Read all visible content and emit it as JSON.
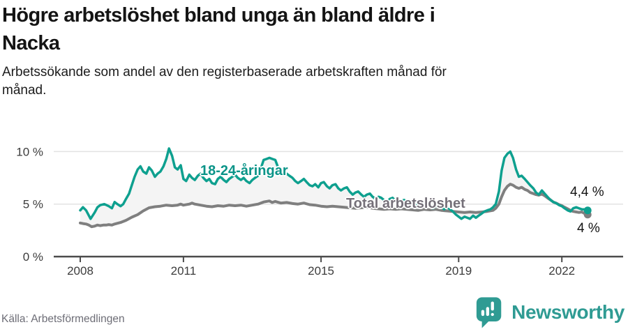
{
  "header": {
    "title_line1": "Högre arbetslöshet bland unga än bland äldre i",
    "title_line2": "Nacka",
    "subtitle_line1": "Arbetssökande som andel av den registerbaserade arbetskraften månad för",
    "subtitle_line2": "månad."
  },
  "footer": {
    "source": "Källa: Arbetsförmedlingen",
    "logo_icon": "newsworthy-speech-bubble-barchart-icon",
    "logo_text": "Newsworthy"
  },
  "colors": {
    "young_line": "#0ea08f",
    "young_label": "#0a9488",
    "total_line": "#7f7f7f",
    "total_label": "#757079",
    "band_fill": "#f4f4f4",
    "gridline": "#e3e3e3",
    "axis_line": "#4b4b4b",
    "tick_label": "#3c3c3c",
    "logo_teal": "#2f9b93"
  },
  "chart_data": {
    "type": "line",
    "title": "Högre arbetslöshet bland unga än bland äldre i Nacka",
    "subtitle": "Arbetssökande som andel av den registerbaserade arbetskraften månad för månad.",
    "unit": "%",
    "grid": "horizontal",
    "legend_position": "inline-labels-on-lines",
    "x_axis": {
      "ticks": [
        2008,
        2011,
        2015,
        2019,
        2022
      ],
      "tick_labels": [
        "2008",
        "2011",
        "2015",
        "2019",
        "2022"
      ],
      "range_years": [
        2008,
        2022.83
      ]
    },
    "y_axis": {
      "ticks": [
        0,
        5,
        10
      ],
      "tick_labels": [
        "0 %",
        "5 %",
        "10 %"
      ],
      "range": [
        0,
        11.8
      ]
    },
    "series": [
      {
        "name": "18-24-åringar",
        "color": "#0ea08f",
        "end_label": "4,4 %",
        "last_value": 4.4,
        "points": [
          [
            2008.0,
            4.4
          ],
          [
            2008.08,
            4.7
          ],
          [
            2008.17,
            4.4
          ],
          [
            2008.3,
            3.6
          ],
          [
            2008.42,
            4.2
          ],
          [
            2008.5,
            4.7
          ],
          [
            2008.58,
            4.9
          ],
          [
            2008.7,
            5.0
          ],
          [
            2008.83,
            4.8
          ],
          [
            2008.92,
            4.6
          ],
          [
            2009.0,
            5.2
          ],
          [
            2009.08,
            5.0
          ],
          [
            2009.17,
            4.8
          ],
          [
            2009.25,
            5.0
          ],
          [
            2009.33,
            5.5
          ],
          [
            2009.42,
            6.0
          ],
          [
            2009.5,
            6.8
          ],
          [
            2009.58,
            7.6
          ],
          [
            2009.67,
            8.3
          ],
          [
            2009.75,
            8.6
          ],
          [
            2009.83,
            8.1
          ],
          [
            2009.92,
            7.9
          ],
          [
            2010.0,
            8.5
          ],
          [
            2010.08,
            8.2
          ],
          [
            2010.17,
            7.6
          ],
          [
            2010.25,
            7.9
          ],
          [
            2010.33,
            8.1
          ],
          [
            2010.42,
            8.6
          ],
          [
            2010.5,
            9.3
          ],
          [
            2010.58,
            10.3
          ],
          [
            2010.67,
            9.6
          ],
          [
            2010.75,
            8.5
          ],
          [
            2010.83,
            8.3
          ],
          [
            2010.92,
            8.7
          ],
          [
            2011.0,
            7.4
          ],
          [
            2011.08,
            7.2
          ],
          [
            2011.17,
            7.8
          ],
          [
            2011.25,
            7.5
          ],
          [
            2011.33,
            7.3
          ],
          [
            2011.42,
            7.7
          ],
          [
            2011.5,
            7.9
          ],
          [
            2011.58,
            7.5
          ],
          [
            2011.67,
            7.2
          ],
          [
            2011.75,
            7.4
          ],
          [
            2011.83,
            7.0
          ],
          [
            2011.92,
            6.9
          ],
          [
            2012.0,
            7.4
          ],
          [
            2012.08,
            7.6
          ],
          [
            2012.17,
            7.3
          ],
          [
            2012.25,
            7.1
          ],
          [
            2012.33,
            7.4
          ],
          [
            2012.42,
            7.6
          ],
          [
            2012.5,
            7.8
          ],
          [
            2012.58,
            7.5
          ],
          [
            2012.67,
            7.3
          ],
          [
            2012.75,
            7.5
          ],
          [
            2012.83,
            7.2
          ],
          [
            2012.92,
            7.0
          ],
          [
            2013.0,
            7.3
          ],
          [
            2013.08,
            7.5
          ],
          [
            2013.17,
            7.7
          ],
          [
            2013.25,
            8.4
          ],
          [
            2013.33,
            9.2
          ],
          [
            2013.42,
            9.3
          ],
          [
            2013.5,
            9.4
          ],
          [
            2013.58,
            9.3
          ],
          [
            2013.67,
            9.2
          ],
          [
            2013.75,
            8.5
          ],
          [
            2013.83,
            8.0
          ],
          [
            2013.92,
            7.8
          ],
          [
            2014.0,
            7.9
          ],
          [
            2014.08,
            7.7
          ],
          [
            2014.17,
            7.5
          ],
          [
            2014.25,
            7.2
          ],
          [
            2014.33,
            7.0
          ],
          [
            2014.42,
            7.2
          ],
          [
            2014.5,
            7.4
          ],
          [
            2014.58,
            7.1
          ],
          [
            2014.67,
            6.8
          ],
          [
            2014.75,
            6.7
          ],
          [
            2014.83,
            6.9
          ],
          [
            2014.92,
            6.6
          ],
          [
            2015.0,
            7.0
          ],
          [
            2015.08,
            7.1
          ],
          [
            2015.17,
            6.7
          ],
          [
            2015.25,
            6.5
          ],
          [
            2015.33,
            6.8
          ],
          [
            2015.42,
            6.9
          ],
          [
            2015.5,
            6.5
          ],
          [
            2015.58,
            6.3
          ],
          [
            2015.67,
            6.5
          ],
          [
            2015.75,
            6.6
          ],
          [
            2015.83,
            6.2
          ],
          [
            2015.92,
            5.9
          ],
          [
            2016.0,
            6.1
          ],
          [
            2016.08,
            6.2
          ],
          [
            2016.17,
            5.9
          ],
          [
            2016.25,
            5.7
          ],
          [
            2016.33,
            5.9
          ],
          [
            2016.42,
            6.0
          ],
          [
            2016.5,
            5.7
          ],
          [
            2016.58,
            5.5
          ],
          [
            2016.67,
            5.7
          ],
          [
            2016.75,
            5.6
          ],
          [
            2016.83,
            5.4
          ],
          [
            2016.92,
            5.2
          ],
          [
            2017.0,
            5.5
          ],
          [
            2017.08,
            5.6
          ],
          [
            2017.17,
            5.3
          ],
          [
            2017.25,
            5.1
          ],
          [
            2017.33,
            5.3
          ],
          [
            2017.42,
            5.4
          ],
          [
            2017.5,
            5.2
          ],
          [
            2017.58,
            5.0
          ],
          [
            2017.67,
            5.2
          ],
          [
            2017.75,
            5.1
          ],
          [
            2017.83,
            4.9
          ],
          [
            2017.92,
            4.7
          ],
          [
            2018.0,
            5.0
          ],
          [
            2018.08,
            5.1
          ],
          [
            2018.17,
            4.8
          ],
          [
            2018.25,
            4.6
          ],
          [
            2018.33,
            4.8
          ],
          [
            2018.42,
            4.9
          ],
          [
            2018.5,
            4.7
          ],
          [
            2018.58,
            4.5
          ],
          [
            2018.67,
            4.7
          ],
          [
            2018.75,
            4.5
          ],
          [
            2018.83,
            4.3
          ],
          [
            2018.92,
            4.0
          ],
          [
            2019.0,
            3.8
          ],
          [
            2019.08,
            3.6
          ],
          [
            2019.17,
            3.8
          ],
          [
            2019.25,
            3.7
          ],
          [
            2019.33,
            3.6
          ],
          [
            2019.42,
            3.9
          ],
          [
            2019.5,
            3.7
          ],
          [
            2019.58,
            3.9
          ],
          [
            2019.67,
            4.1
          ],
          [
            2019.75,
            4.3
          ],
          [
            2019.83,
            4.4
          ],
          [
            2019.92,
            4.5
          ],
          [
            2020.0,
            4.7
          ],
          [
            2020.08,
            5.0
          ],
          [
            2020.17,
            6.2
          ],
          [
            2020.25,
            8.2
          ],
          [
            2020.33,
            9.4
          ],
          [
            2020.42,
            9.8
          ],
          [
            2020.5,
            10.0
          ],
          [
            2020.58,
            9.4
          ],
          [
            2020.67,
            8.3
          ],
          [
            2020.75,
            7.6
          ],
          [
            2020.83,
            7.7
          ],
          [
            2020.92,
            7.4
          ],
          [
            2021.0,
            7.1
          ],
          [
            2021.08,
            6.8
          ],
          [
            2021.17,
            6.5
          ],
          [
            2021.25,
            6.1
          ],
          [
            2021.33,
            5.9
          ],
          [
            2021.42,
            6.3
          ],
          [
            2021.5,
            6.0
          ],
          [
            2021.58,
            5.7
          ],
          [
            2021.67,
            5.4
          ],
          [
            2021.75,
            5.2
          ],
          [
            2021.83,
            5.1
          ],
          [
            2021.92,
            4.9
          ],
          [
            2022.0,
            4.8
          ],
          [
            2022.08,
            4.6
          ],
          [
            2022.17,
            4.4
          ],
          [
            2022.25,
            4.3
          ],
          [
            2022.33,
            4.6
          ],
          [
            2022.42,
            4.7
          ],
          [
            2022.5,
            4.6
          ],
          [
            2022.58,
            4.5
          ],
          [
            2022.67,
            4.5
          ],
          [
            2022.75,
            4.4
          ]
        ]
      },
      {
        "name": "Total arbetslöshet",
        "color": "#7f7f7f",
        "end_label": "4 %",
        "last_value": 4.0,
        "points": [
          [
            2008.0,
            3.2
          ],
          [
            2008.08,
            3.15
          ],
          [
            2008.17,
            3.1
          ],
          [
            2008.25,
            3.0
          ],
          [
            2008.33,
            2.85
          ],
          [
            2008.42,
            2.9
          ],
          [
            2008.5,
            3.0
          ],
          [
            2008.58,
            2.95
          ],
          [
            2008.67,
            3.0
          ],
          [
            2008.75,
            3.0
          ],
          [
            2008.83,
            3.05
          ],
          [
            2008.92,
            3.0
          ],
          [
            2009.0,
            3.1
          ],
          [
            2009.17,
            3.25
          ],
          [
            2009.33,
            3.45
          ],
          [
            2009.5,
            3.75
          ],
          [
            2009.67,
            4.0
          ],
          [
            2009.83,
            4.35
          ],
          [
            2010.0,
            4.65
          ],
          [
            2010.17,
            4.75
          ],
          [
            2010.33,
            4.8
          ],
          [
            2010.5,
            4.9
          ],
          [
            2010.67,
            4.85
          ],
          [
            2010.83,
            4.9
          ],
          [
            2010.92,
            5.0
          ],
          [
            2011.0,
            4.9
          ],
          [
            2011.17,
            5.0
          ],
          [
            2011.25,
            5.1
          ],
          [
            2011.33,
            5.0
          ],
          [
            2011.5,
            4.9
          ],
          [
            2011.67,
            4.8
          ],
          [
            2011.83,
            4.75
          ],
          [
            2012.0,
            4.85
          ],
          [
            2012.17,
            4.8
          ],
          [
            2012.33,
            4.9
          ],
          [
            2012.5,
            4.85
          ],
          [
            2012.67,
            4.9
          ],
          [
            2012.83,
            4.8
          ],
          [
            2013.0,
            4.9
          ],
          [
            2013.17,
            5.0
          ],
          [
            2013.33,
            5.2
          ],
          [
            2013.5,
            5.3
          ],
          [
            2013.58,
            5.15
          ],
          [
            2013.67,
            5.25
          ],
          [
            2013.83,
            5.1
          ],
          [
            2014.0,
            5.15
          ],
          [
            2014.17,
            5.05
          ],
          [
            2014.33,
            5.0
          ],
          [
            2014.5,
            5.1
          ],
          [
            2014.67,
            4.95
          ],
          [
            2014.83,
            4.9
          ],
          [
            2015.0,
            4.8
          ],
          [
            2015.17,
            4.75
          ],
          [
            2015.33,
            4.8
          ],
          [
            2015.5,
            4.75
          ],
          [
            2015.67,
            4.7
          ],
          [
            2015.83,
            4.65
          ],
          [
            2016.0,
            4.6
          ],
          [
            2016.17,
            4.65
          ],
          [
            2016.33,
            4.7
          ],
          [
            2016.5,
            4.6
          ],
          [
            2016.67,
            4.55
          ],
          [
            2016.83,
            4.5
          ],
          [
            2017.0,
            4.55
          ],
          [
            2017.17,
            4.5
          ],
          [
            2017.33,
            4.55
          ],
          [
            2017.5,
            4.5
          ],
          [
            2017.67,
            4.45
          ],
          [
            2017.83,
            4.4
          ],
          [
            2018.0,
            4.5
          ],
          [
            2018.17,
            4.45
          ],
          [
            2018.33,
            4.5
          ],
          [
            2018.5,
            4.4
          ],
          [
            2018.67,
            4.35
          ],
          [
            2018.83,
            4.3
          ],
          [
            2019.0,
            4.25
          ],
          [
            2019.17,
            4.2
          ],
          [
            2019.33,
            4.25
          ],
          [
            2019.5,
            4.2
          ],
          [
            2019.67,
            4.25
          ],
          [
            2019.83,
            4.3
          ],
          [
            2020.0,
            4.4
          ],
          [
            2020.08,
            4.6
          ],
          [
            2020.17,
            5.0
          ],
          [
            2020.25,
            5.7
          ],
          [
            2020.33,
            6.3
          ],
          [
            2020.42,
            6.7
          ],
          [
            2020.5,
            6.9
          ],
          [
            2020.58,
            6.8
          ],
          [
            2020.67,
            6.6
          ],
          [
            2020.75,
            6.5
          ],
          [
            2020.83,
            6.6
          ],
          [
            2020.92,
            6.4
          ],
          [
            2021.0,
            6.3
          ],
          [
            2021.08,
            6.1
          ],
          [
            2021.17,
            6.0
          ],
          [
            2021.25,
            5.9
          ],
          [
            2021.33,
            5.85
          ],
          [
            2021.42,
            5.95
          ],
          [
            2021.5,
            5.8
          ],
          [
            2021.58,
            5.6
          ],
          [
            2021.67,
            5.4
          ],
          [
            2021.75,
            5.2
          ],
          [
            2021.83,
            5.1
          ],
          [
            2021.92,
            4.95
          ],
          [
            2022.0,
            4.85
          ],
          [
            2022.08,
            4.7
          ],
          [
            2022.17,
            4.55
          ],
          [
            2022.25,
            4.4
          ],
          [
            2022.33,
            4.3
          ],
          [
            2022.42,
            4.25
          ],
          [
            2022.5,
            4.2
          ],
          [
            2022.58,
            4.25
          ],
          [
            2022.67,
            4.1
          ],
          [
            2022.75,
            4.0
          ]
        ]
      }
    ]
  }
}
